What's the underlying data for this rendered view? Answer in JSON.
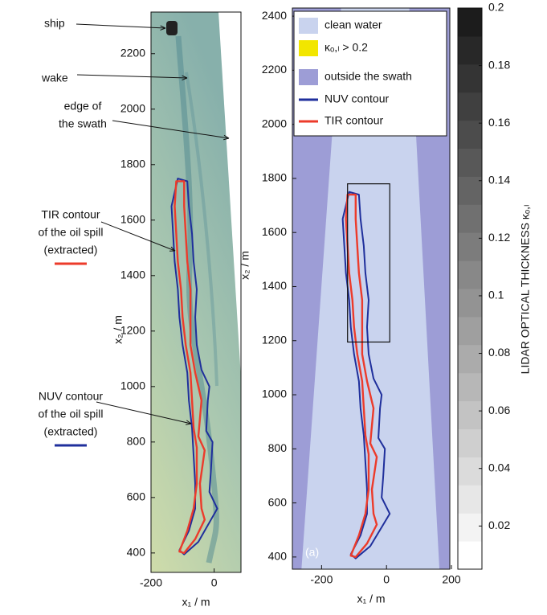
{
  "chart_data": [
    {
      "type": "image",
      "xlim": [
        -200,
        85
      ],
      "ylim": [
        330,
        2350
      ],
      "xticks": [
        -200,
        0
      ],
      "yticks": [
        400,
        600,
        800,
        1000,
        1200,
        1400,
        1600,
        1800,
        2000,
        2200
      ],
      "xlabel": "x₁ / m",
      "ylabel": "x₂ / m",
      "annotations": [
        {
          "lines": [
            "ship"
          ]
        },
        {
          "lines": [
            "wake"
          ]
        },
        {
          "lines": [
            "edge of",
            "the swath"
          ]
        },
        {
          "lines": [
            "TIR contour",
            "of the oil spill",
            "(extracted)"
          ]
        },
        {
          "lines": [
            "NUV contour",
            "of the oil spill",
            "(extracted)"
          ]
        }
      ]
    },
    {
      "type": "map",
      "panel_label": "(a)",
      "xlim": [
        -290,
        195
      ],
      "ylim": [
        355,
        2430
      ],
      "xticks": [
        -200,
        0,
        200
      ],
      "yticks": [
        400,
        600,
        800,
        1000,
        1200,
        1400,
        1600,
        1800,
        2000,
        2200,
        2400
      ],
      "xlabel": "x₁ / m",
      "ylabel": "x₂ / m",
      "areas": [
        {
          "name": "clean water",
          "color": "#c9d3ee",
          "x": [
            -262,
            163,
            70,
            -140
          ],
          "values": [
            355,
            355,
            2430,
            2430
          ]
        },
        {
          "name": "κₒ,ₗ > 0.2",
          "color": "#f2e600"
        },
        {
          "name": "outside the swath",
          "color": "#9d9dd6"
        }
      ],
      "series": [
        {
          "name": "NUV contour",
          "color": "#1f2f9c",
          "x": [
            -95,
            -50,
            -10,
            10,
            -15,
            -10,
            -5,
            -25,
            -20,
            -15,
            -40,
            -55,
            -60,
            -55,
            -65,
            -70,
            -80,
            -85,
            -115,
            -135,
            -130,
            -125,
            -115,
            -110,
            -100,
            -85,
            -80,
            -70,
            -65,
            -60,
            -60,
            -80,
            -110
          ],
          "values": [
            395,
            440,
            520,
            560,
            620,
            700,
            800,
            840,
            950,
            1000,
            1060,
            1150,
            1250,
            1350,
            1450,
            1550,
            1650,
            1740,
            1750,
            1650,
            1550,
            1450,
            1350,
            1250,
            1150,
            1050,
            950,
            850,
            750,
            650,
            560,
            480,
            410
          ]
        },
        {
          "name": "TIR contour",
          "color": "#ec3b2b",
          "x": [
            -95,
            -60,
            -30,
            -40,
            -45,
            -30,
            -50,
            -40,
            -60,
            -75,
            -75,
            -75,
            -85,
            -90,
            -95,
            -95,
            -120,
            -125,
            -120,
            -115,
            -105,
            -100,
            -90,
            -75,
            -70,
            -65,
            -55,
            -55,
            -65,
            -85,
            -110
          ],
          "values": [
            400,
            450,
            520,
            560,
            650,
            770,
            820,
            950,
            1050,
            1150,
            1250,
            1350,
            1450,
            1550,
            1650,
            1740,
            1740,
            1650,
            1550,
            1450,
            1350,
            1250,
            1150,
            1050,
            950,
            850,
            780,
            650,
            560,
            480,
            405
          ]
        }
      ],
      "box": {
        "x": [
          -120,
          10
        ],
        "values": [
          1195,
          1780
        ]
      },
      "colorbar": {
        "label": "LIDAR OPTICAL THICKNESS κₒ,ₗ",
        "ylim": [
          0.005,
          0.2
        ],
        "yticks": [
          0.02,
          0.04,
          0.06,
          0.08,
          0.1,
          0.12,
          0.14,
          0.16,
          0.18,
          0.2
        ],
        "colors": [
          "#ffffff",
          "#1c1c1c"
        ]
      }
    }
  ]
}
